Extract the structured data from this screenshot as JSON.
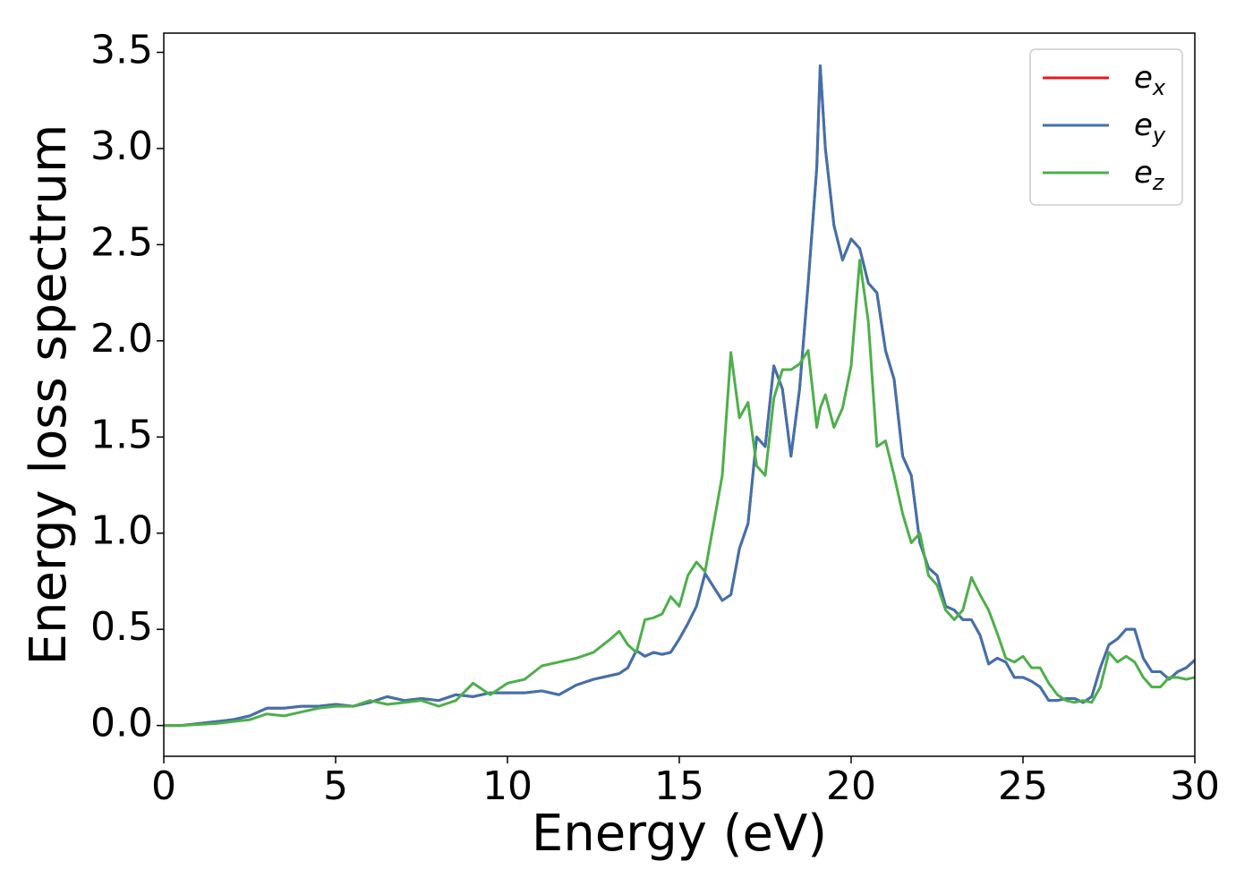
{
  "chart_data": {
    "type": "line",
    "xlabel": "Energy (eV)",
    "ylabel": "Energy loss spectrum",
    "xlim": [
      0,
      30
    ],
    "ylim": [
      -0.16,
      3.6
    ],
    "xticks": [
      0,
      5,
      10,
      15,
      20,
      25,
      30
    ],
    "yticks": [
      {
        "value": 0,
        "label": "0.0"
      },
      0.5,
      {
        "value": 1,
        "label": "1.0"
      },
      1.5,
      {
        "value": 2,
        "label": "2.0"
      },
      2.5,
      {
        "value": 3,
        "label": "3.0"
      },
      3.5
    ],
    "legend": "upper right",
    "x": [
      0,
      0.5,
      1,
      1.5,
      2,
      2.5,
      3,
      3.5,
      4,
      4.5,
      5,
      5.5,
      6,
      6.5,
      7,
      7.5,
      8,
      8.5,
      9,
      9.5,
      10,
      10.5,
      11,
      11.5,
      12,
      12.5,
      13,
      13.25,
      13.5,
      13.75,
      14,
      14.25,
      14.5,
      14.75,
      15,
      15.25,
      15.5,
      15.75,
      16,
      16.25,
      16.5,
      16.75,
      17,
      17.25,
      17.5,
      17.75,
      18,
      18.25,
      18.5,
      18.75,
      19,
      19.1,
      19.25,
      19.5,
      19.75,
      20,
      20.25,
      20.5,
      20.75,
      21,
      21.25,
      21.5,
      21.75,
      22,
      22.25,
      22.5,
      22.75,
      23,
      23.25,
      23.5,
      23.75,
      24,
      24.25,
      24.5,
      24.75,
      25,
      25.25,
      25.5,
      25.75,
      26,
      26.25,
      26.5,
      26.75,
      27,
      27.25,
      27.5,
      27.75,
      28,
      28.25,
      28.5,
      28.75,
      29,
      29.25,
      29.5,
      29.75,
      30
    ],
    "series": [
      {
        "name": "e",
        "name_subscript": "x",
        "color": "#e41a1c",
        "values": [
          0,
          0,
          0.01,
          0.02,
          0.03,
          0.05,
          0.09,
          0.09,
          0.1,
          0.1,
          0.11,
          0.1,
          0.12,
          0.15,
          0.13,
          0.14,
          0.13,
          0.16,
          0.15,
          0.17,
          0.17,
          0.17,
          0.18,
          0.16,
          0.21,
          0.24,
          0.26,
          0.27,
          0.3,
          0.39,
          0.36,
          0.38,
          0.37,
          0.38,
          0.45,
          0.53,
          0.62,
          0.79,
          0.72,
          0.65,
          0.68,
          0.92,
          1.05,
          1.5,
          1.45,
          1.87,
          1.75,
          1.4,
          1.75,
          2.3,
          2.9,
          3.43,
          3.0,
          2.6,
          2.42,
          2.53,
          2.48,
          2.3,
          2.25,
          1.95,
          1.8,
          1.4,
          1.3,
          0.95,
          0.82,
          0.78,
          0.62,
          0.6,
          0.55,
          0.55,
          0.47,
          0.32,
          0.35,
          0.33,
          0.25,
          0.25,
          0.23,
          0.2,
          0.13,
          0.13,
          0.14,
          0.14,
          0.12,
          0.15,
          0.3,
          0.42,
          0.45,
          0.5,
          0.5,
          0.35,
          0.28,
          0.28,
          0.24,
          0.28,
          0.3,
          0.34
        ]
      },
      {
        "name": "e",
        "name_subscript": "y",
        "color": "#3f72ac",
        "values": [
          0,
          0,
          0.01,
          0.02,
          0.03,
          0.05,
          0.09,
          0.09,
          0.1,
          0.1,
          0.11,
          0.1,
          0.12,
          0.15,
          0.13,
          0.14,
          0.13,
          0.16,
          0.15,
          0.17,
          0.17,
          0.17,
          0.18,
          0.16,
          0.21,
          0.24,
          0.26,
          0.27,
          0.3,
          0.39,
          0.36,
          0.38,
          0.37,
          0.38,
          0.45,
          0.53,
          0.62,
          0.79,
          0.72,
          0.65,
          0.68,
          0.92,
          1.05,
          1.5,
          1.45,
          1.87,
          1.75,
          1.4,
          1.75,
          2.3,
          2.9,
          3.43,
          3.0,
          2.6,
          2.42,
          2.53,
          2.48,
          2.3,
          2.25,
          1.95,
          1.8,
          1.4,
          1.3,
          0.95,
          0.82,
          0.78,
          0.62,
          0.6,
          0.55,
          0.55,
          0.47,
          0.32,
          0.35,
          0.33,
          0.25,
          0.25,
          0.23,
          0.2,
          0.13,
          0.13,
          0.14,
          0.14,
          0.12,
          0.15,
          0.3,
          0.42,
          0.45,
          0.5,
          0.5,
          0.35,
          0.28,
          0.28,
          0.24,
          0.28,
          0.3,
          0.34
        ]
      },
      {
        "name": "e",
        "name_subscript": "z",
        "color": "#4daf4a",
        "values": [
          0,
          0,
          0.005,
          0.01,
          0.02,
          0.03,
          0.06,
          0.05,
          0.07,
          0.09,
          0.1,
          0.1,
          0.13,
          0.11,
          0.12,
          0.13,
          0.1,
          0.13,
          0.22,
          0.16,
          0.22,
          0.24,
          0.31,
          0.33,
          0.35,
          0.38,
          0.45,
          0.49,
          0.42,
          0.38,
          0.55,
          0.56,
          0.58,
          0.67,
          0.62,
          0.78,
          0.85,
          0.8,
          1.05,
          1.3,
          1.94,
          1.6,
          1.68,
          1.35,
          1.3,
          1.7,
          1.85,
          1.85,
          1.88,
          1.95,
          1.55,
          1.65,
          1.72,
          1.55,
          1.65,
          1.87,
          2.42,
          2.1,
          1.45,
          1.48,
          1.3,
          1.1,
          0.95,
          1.0,
          0.78,
          0.73,
          0.6,
          0.55,
          0.6,
          0.77,
          0.68,
          0.6,
          0.48,
          0.35,
          0.33,
          0.36,
          0.3,
          0.3,
          0.22,
          0.16,
          0.13,
          0.12,
          0.13,
          0.12,
          0.2,
          0.38,
          0.33,
          0.36,
          0.33,
          0.25,
          0.2,
          0.2,
          0.25,
          0.25,
          0.24,
          0.25
        ]
      }
    ]
  }
}
